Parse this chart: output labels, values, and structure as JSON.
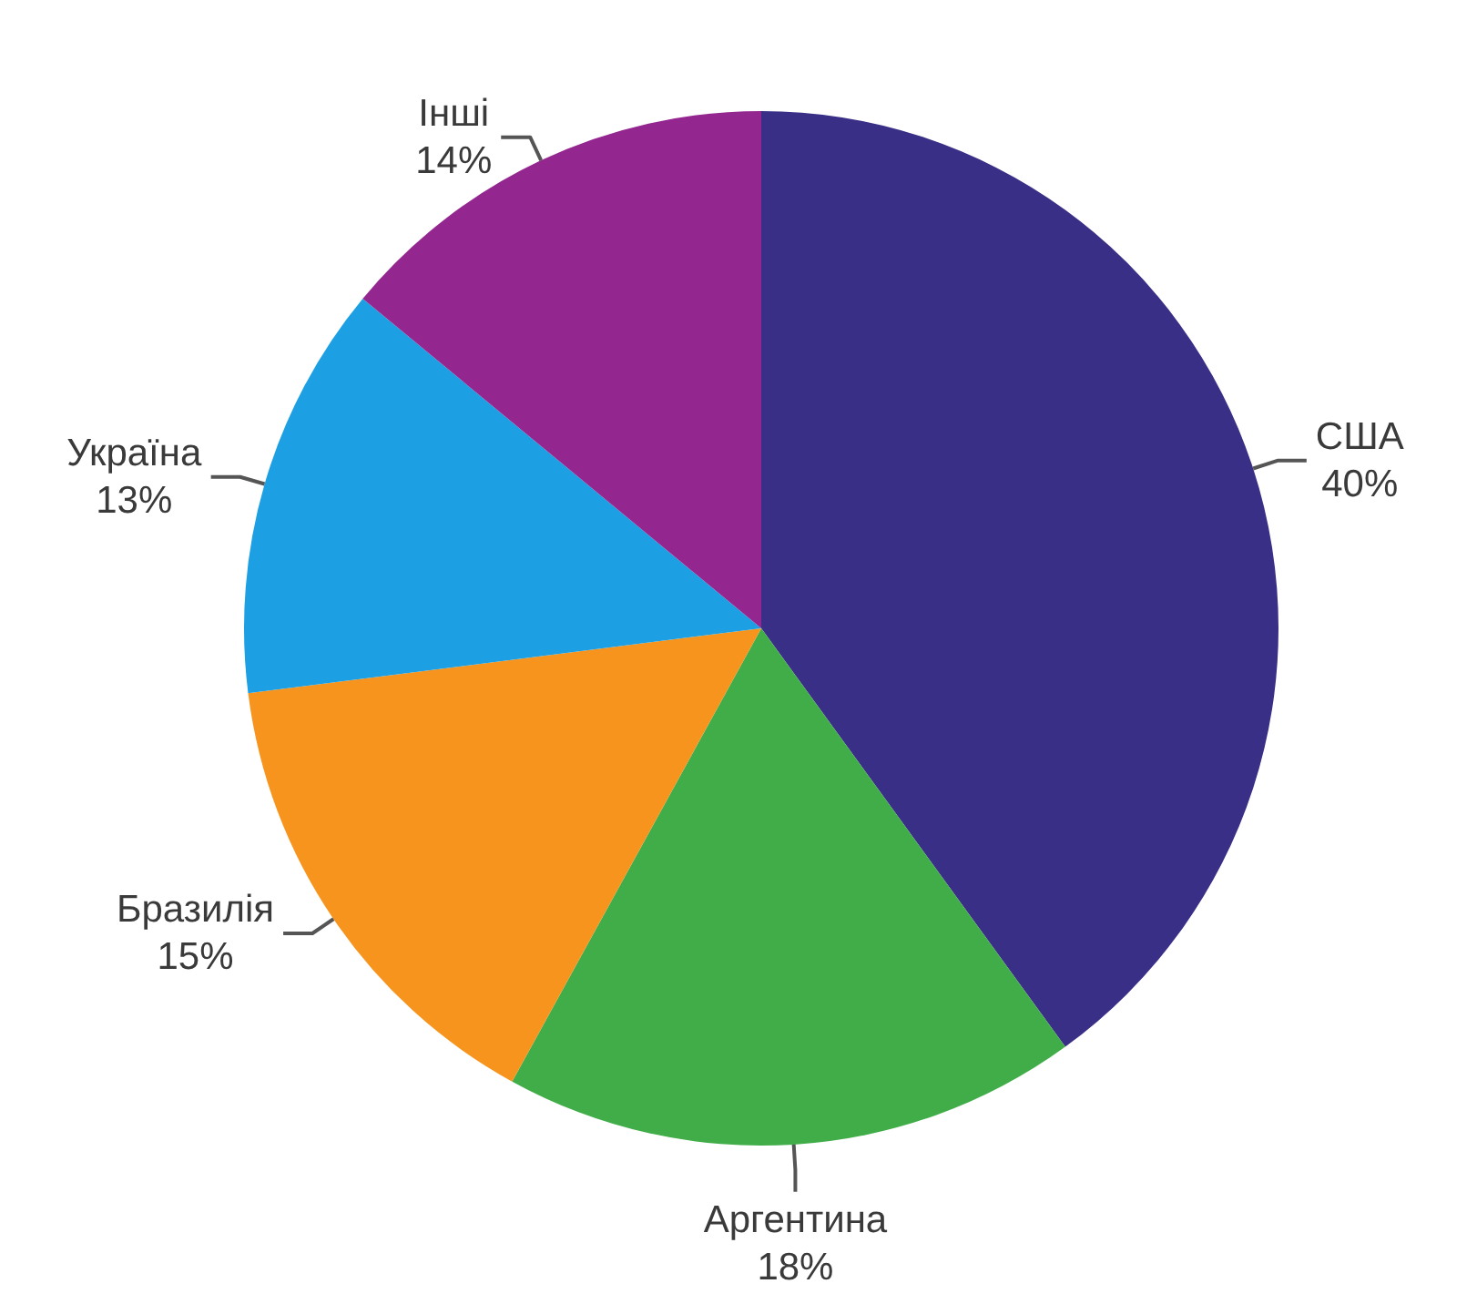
{
  "chart_data": {
    "type": "pie",
    "categories": [
      "США",
      "Аргентина",
      "Бразилія",
      "Україна",
      "Інші"
    ],
    "values": [
      40,
      18,
      15,
      13,
      14
    ],
    "colors": [
      "#3a2f87",
      "#40ad48",
      "#f7941e",
      "#1ca0e3",
      "#93278f"
    ],
    "value_labels": [
      "40%",
      "18%",
      "15%",
      "13%",
      "14%"
    ]
  }
}
